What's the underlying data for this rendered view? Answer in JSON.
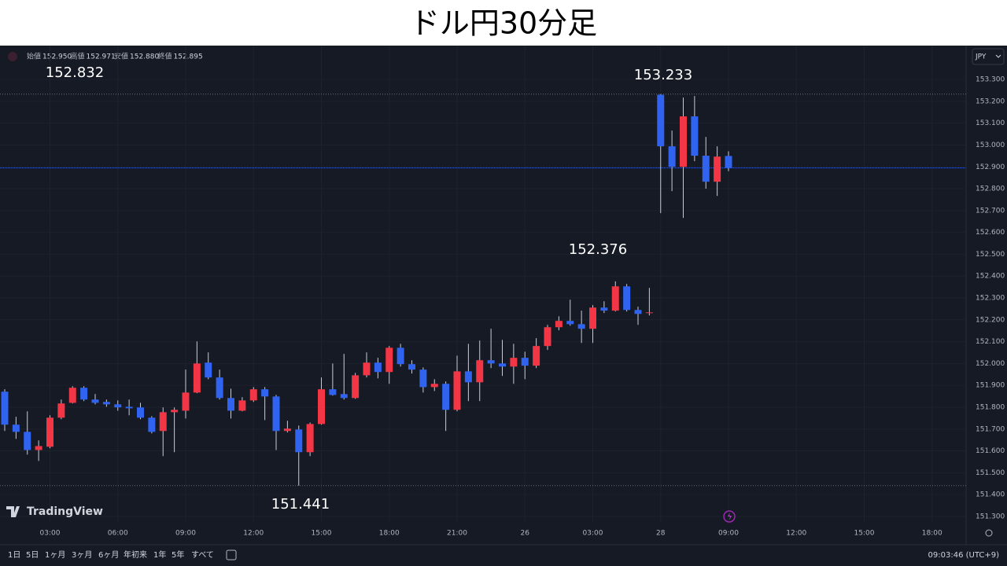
{
  "chart_data": {
    "type": "candlestick",
    "title": "ドル円30分足",
    "ohlc_legend": [
      {
        "label": "始値",
        "value": "152.950"
      },
      {
        "label": "高値",
        "value": "152.971"
      },
      {
        "label": "安値",
        "value": "152.880"
      },
      {
        "label": "終値",
        "value": "152.895"
      }
    ],
    "currency": "JPY",
    "brand": "TradingView",
    "annotations": [
      "152.832",
      "153.233",
      "152.376",
      "151.441"
    ],
    "timeframes": [
      "1日",
      "5日",
      "1ヶ月",
      "3ヶ月",
      "6ヶ月",
      "年初来",
      "1年",
      "5年",
      "すべて"
    ],
    "clock": "09:03:46 (UTC+9)",
    "up_color": "#f23645",
    "down_color": "#2f63f0",
    "grid": true,
    "categories": [
      null,
      null,
      null,
      null,
      "03:00",
      null,
      null,
      null,
      null,
      null,
      "06:00",
      null,
      null,
      null,
      null,
      null,
      "09:00",
      null,
      null,
      null,
      null,
      null,
      "12:00",
      null,
      null,
      null,
      null,
      null,
      "15:00",
      null,
      null,
      null,
      null,
      null,
      "18:00",
      null,
      null,
      null,
      null,
      null,
      "21:00",
      null,
      null,
      null,
      null,
      null,
      "26",
      null,
      null,
      null,
      null,
      null,
      "03:00",
      null,
      null,
      null,
      null,
      null,
      "28",
      null,
      null,
      null,
      null,
      null,
      "09:00",
      null,
      null,
      null,
      null,
      null,
      "12:00",
      null,
      null,
      null,
      null,
      null,
      "15:00",
      null,
      null,
      null,
      null,
      null,
      "18:00"
    ],
    "open": [
      151.871,
      151.72,
      151.687,
      151.604,
      151.619,
      151.752,
      151.82,
      151.889,
      151.835,
      151.824,
      151.813,
      151.802,
      151.799,
      151.752,
      151.691,
      151.777,
      151.784,
      151.867,
      152.004,
      151.936,
      151.842,
      151.784,
      151.831,
      151.882,
      151.849,
      151.691,
      151.698,
      151.594,
      151.723,
      151.882,
      151.86,
      151.842,
      151.946,
      152.004,
      151.961,
      152.072,
      151.997,
      151.972,
      151.892,
      151.907,
      151.788,
      151.964,
      151.914,
      152.015,
      152.0,
      151.986,
      152.026,
      151.99,
      152.08,
      152.166,
      152.195,
      152.18,
      152.159,
      152.256,
      152.242,
      152.353,
      152.245,
      152.231,
      153.23,
      152.994,
      152.9,
      153.131,
      152.951,
      152.832,
      152.95,
      null,
      null,
      null,
      null,
      null,
      null,
      null,
      null,
      null,
      null,
      null,
      null,
      null,
      null,
      null,
      null,
      null,
      null
    ],
    "high": [
      151.882,
      151.756,
      151.781,
      151.648,
      151.763,
      151.835,
      151.896,
      151.896,
      151.86,
      151.835,
      151.831,
      151.835,
      151.82,
      151.759,
      151.799,
      151.799,
      151.972,
      152.101,
      152.051,
      151.972,
      151.885,
      151.846,
      151.892,
      151.892,
      151.856,
      151.738,
      151.716,
      151.73,
      151.936,
      152.0,
      152.044,
      151.957,
      152.051,
      152.026,
      152.08,
      152.09,
      152.015,
      151.982,
      151.928,
      151.918,
      152.036,
      152.09,
      152.105,
      152.159,
      152.108,
      152.09,
      152.054,
      152.116,
      152.177,
      152.216,
      152.292,
      152.242,
      152.267,
      152.285,
      152.376,
      152.364,
      152.26,
      152.346,
      153.233,
      153.066,
      153.217,
      153.224,
      153.037,
      152.994,
      152.971,
      null,
      null,
      null,
      null,
      null,
      null,
      null,
      null,
      null,
      null,
      null,
      null,
      null,
      null,
      null,
      null,
      null,
      null
    ],
    "low": [
      151.691,
      151.655,
      151.583,
      151.554,
      151.612,
      151.745,
      151.817,
      151.828,
      151.813,
      151.802,
      151.784,
      151.763,
      151.745,
      151.68,
      151.576,
      151.594,
      151.748,
      151.864,
      151.928,
      151.835,
      151.748,
      151.781,
      151.824,
      151.741,
      151.604,
      151.684,
      151.441,
      151.576,
      151.72,
      151.853,
      151.835,
      151.838,
      151.936,
      151.932,
      151.907,
      151.986,
      151.954,
      151.867,
      151.874,
      151.691,
      151.781,
      151.828,
      151.828,
      151.979,
      151.943,
      151.907,
      151.928,
      151.979,
      152.062,
      152.152,
      152.173,
      152.094,
      152.094,
      152.231,
      152.238,
      152.238,
      152.177,
      152.22,
      152.688,
      152.789,
      152.666,
      152.926,
      152.8,
      152.767,
      152.88,
      null,
      null,
      null,
      null,
      null,
      null,
      null,
      null,
      null,
      null,
      null,
      null,
      null,
      null,
      null,
      null,
      null,
      null
    ],
    "close": [
      151.72,
      151.687,
      151.604,
      151.622,
      151.752,
      151.817,
      151.889,
      151.835,
      151.82,
      151.813,
      151.799,
      151.795,
      151.752,
      151.687,
      151.777,
      151.788,
      151.867,
      152.0,
      151.936,
      151.842,
      151.784,
      151.831,
      151.882,
      151.849,
      151.691,
      151.702,
      151.594,
      151.723,
      151.882,
      151.856,
      151.842,
      151.946,
      152.004,
      151.961,
      152.072,
      151.997,
      151.972,
      151.892,
      151.907,
      151.788,
      151.964,
      151.914,
      152.015,
      152.0,
      151.986,
      152.026,
      151.99,
      152.08,
      152.166,
      152.195,
      152.18,
      152.159,
      152.256,
      152.242,
      152.353,
      152.245,
      152.227,
      152.234,
      152.994,
      152.9,
      153.131,
      152.951,
      152.832,
      152.947,
      152.895,
      null,
      null,
      null,
      null,
      null,
      null,
      null,
      null,
      null,
      null,
      null,
      null,
      null,
      null,
      null,
      null,
      null,
      null
    ],
    "ylim": [
      151.271,
      153.455
    ],
    "yticks": [
      {
        "value": 151.3,
        "label": "151.300"
      },
      {
        "value": 151.4,
        "label": "151.400"
      },
      {
        "value": 151.5,
        "label": "151.500"
      },
      {
        "value": 151.6,
        "label": "151.600"
      },
      {
        "value": 151.7,
        "label": "151.700"
      },
      {
        "value": 151.8,
        "label": "151.800"
      },
      {
        "value": 151.9,
        "label": "151.900"
      },
      {
        "value": 152.0,
        "label": "152.000"
      },
      {
        "value": 152.1,
        "label": "152.100"
      },
      {
        "value": 152.2,
        "label": "152.200"
      },
      {
        "value": 152.3,
        "label": "152.300"
      },
      {
        "value": 152.4,
        "label": "152.400"
      },
      {
        "value": 152.5,
        "label": "152.500"
      },
      {
        "value": 152.6,
        "label": "152.600"
      },
      {
        "value": 152.7,
        "label": "152.700"
      },
      {
        "value": 152.8,
        "label": "152.800"
      },
      {
        "value": 152.9,
        "label": "152.900"
      },
      {
        "value": 153.0,
        "label": "153.000"
      },
      {
        "value": 153.1,
        "label": "153.100"
      },
      {
        "value": 153.2,
        "label": "153.200"
      },
      {
        "value": 153.3,
        "label": "153.300"
      }
    ]
  }
}
